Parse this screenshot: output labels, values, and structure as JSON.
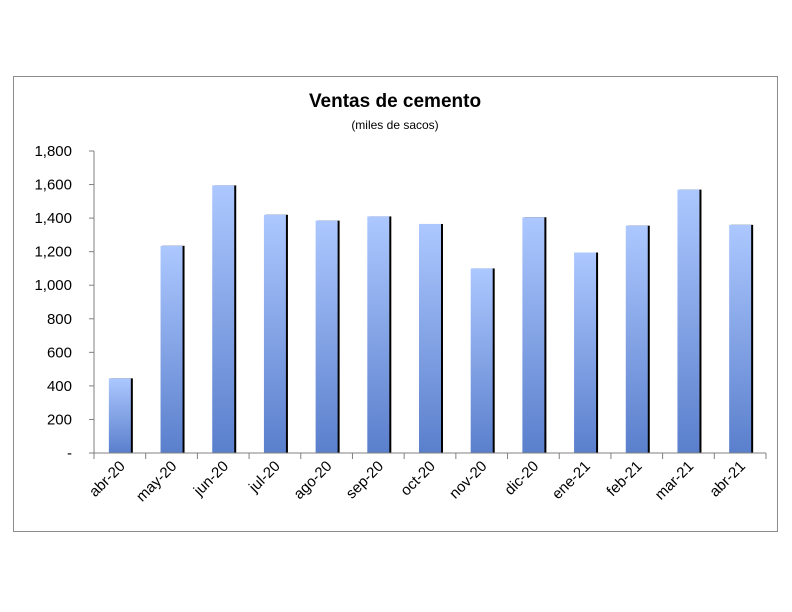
{
  "chart_data": {
    "type": "bar",
    "title": "Ventas de cemento",
    "subtitle": "(miles de sacos)",
    "categories": [
      "abr-20",
      "may-20",
      "jun-20",
      "jul-20",
      "ago-20",
      "sep-20",
      "oct-20",
      "nov-20",
      "dic-20",
      "ene-21",
      "feb-21",
      "mar-21",
      "abr-21"
    ],
    "values": [
      445,
      1235,
      1595,
      1420,
      1385,
      1410,
      1365,
      1100,
      1405,
      1195,
      1355,
      1570,
      1360
    ],
    "ylim": [
      0,
      1800
    ],
    "yticks": [
      0,
      200,
      400,
      600,
      800,
      1000,
      1200,
      1400,
      1600,
      1800
    ],
    "ytick_labels": [
      "-",
      "200",
      "400",
      "600",
      "800",
      "1,000",
      "1,200",
      "1,400",
      "1,600",
      "1,800"
    ],
    "colors": {
      "bar_top": "#adc8ff",
      "bar_bottom": "#5a7fcc",
      "bar_shadow": "#000000",
      "axis": "#808080"
    }
  }
}
